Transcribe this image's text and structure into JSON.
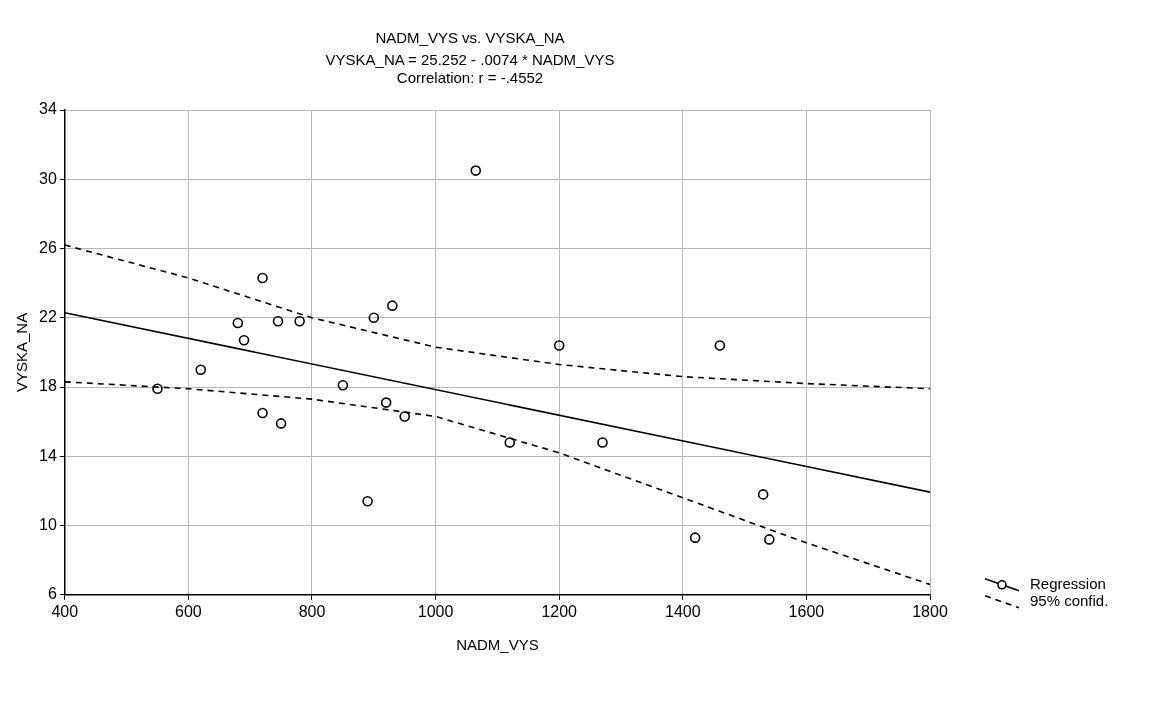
{
  "chart_data": {
    "type": "scatter",
    "title": "NADM_VYS vs. VYSKA_NA",
    "subtitle": "VYSKA_NA = 25.252 - .0074 * NADM_VYS",
    "annotations": [
      "Correlation: r = -.4552"
    ],
    "xlabel": "NADM_VYS",
    "ylabel": "VYSKA_NA",
    "xlim": [
      400,
      1800
    ],
    "xticks": [
      400,
      600,
      800,
      1000,
      1200,
      1400,
      1600,
      1800
    ],
    "ylim": [
      6,
      34
    ],
    "yticks": [
      6,
      10,
      14,
      18,
      22,
      26,
      30,
      34
    ],
    "grid": true,
    "legend": "bottom right",
    "series": [
      {
        "name": "Regression",
        "marker": "circle",
        "color": "#000000",
        "x": [
          550,
          620,
          680,
          690,
          720,
          720,
          745,
          750,
          780,
          850,
          890,
          900,
          920,
          930,
          950,
          1065,
          1120,
          1200,
          1270,
          1420,
          1460,
          1530,
          1540
        ],
        "values": [
          17.9,
          19,
          21.7,
          20.7,
          24.3,
          16.5,
          21.8,
          15.9,
          21.8,
          18.1,
          11.4,
          22,
          17.1,
          22.7,
          16.3,
          30.5,
          14.8,
          20.4,
          14.8,
          9.3,
          20.4,
          11.8,
          9.2
        ]
      },
      {
        "type": "line",
        "marker": "none",
        "line_style": "solid",
        "color": "#000000",
        "x": [
          400,
          1800
        ],
        "values": [
          22.29,
          11.93
        ]
      },
      {
        "name": "95% confid.",
        "type": "line",
        "marker": "none",
        "line_style": "dashed",
        "color": "#000000",
        "x": [
          400,
          600,
          800,
          1000,
          1200,
          1400,
          1600,
          1800
        ],
        "values": [
          26.2,
          24.3,
          22,
          20.3,
          19.3,
          18.6,
          18.2,
          17.9
        ]
      },
      {
        "type": "line",
        "marker": "none",
        "line_style": "dashed",
        "color": "#000000",
        "x": [
          400,
          600,
          800,
          1000,
          1200,
          1400,
          1600,
          1800
        ],
        "values": [
          18.3,
          17.9,
          17.3,
          16.3,
          14.2,
          11.6,
          9,
          6.6
        ]
      }
    ]
  }
}
